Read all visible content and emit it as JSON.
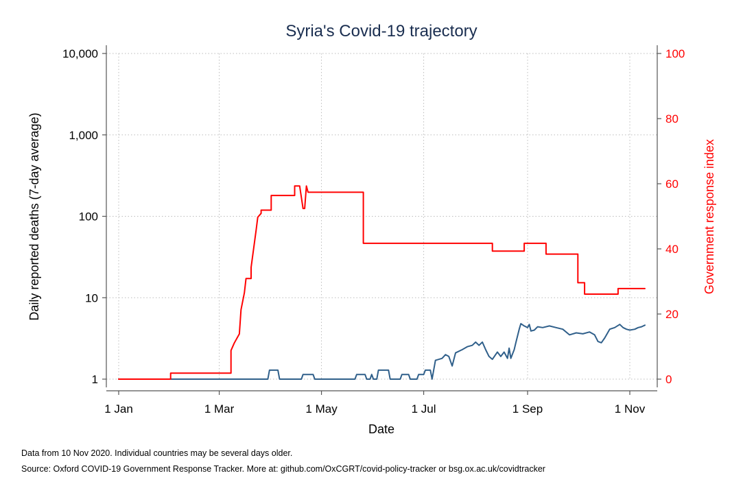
{
  "chart_data": {
    "type": "line",
    "title": "Syria's Covid-19 trajectory",
    "xlabel": "Date",
    "ylabel_left": "Daily reported deaths (7-day average)",
    "ylabel_right": "Government response index",
    "left_axis": {
      "scale": "log",
      "range": [
        1,
        10000
      ],
      "ticks": [
        1,
        10,
        100,
        1000,
        10000
      ],
      "tick_labels": [
        "1",
        "10",
        "100",
        "1,000",
        "10,000"
      ]
    },
    "right_axis": {
      "scale": "linear",
      "range": [
        0,
        100
      ],
      "ticks": [
        0,
        20,
        40,
        60,
        80,
        100
      ],
      "tick_labels": [
        "0",
        "20",
        "40",
        "60",
        "80",
        "100"
      ]
    },
    "x_axis": {
      "range": [
        "2020-01-01",
        "2020-11-10"
      ],
      "ticks": [
        "2020-01-01",
        "2020-03-01",
        "2020-05-01",
        "2020-07-01",
        "2020-09-01",
        "2020-11-01"
      ],
      "tick_labels": [
        "1 Jan",
        "1 Mar",
        "1 May",
        "1 Jul",
        "1 Sep",
        "1 Nov"
      ]
    },
    "grid": true,
    "colors": {
      "deaths": "#2f5f8a",
      "response": "#ff0000",
      "axis": "#555555",
      "grid": "#bbbbbb"
    },
    "series": [
      {
        "axis": "left",
        "color": "#2f5f8a",
        "points": [
          [
            "2020-01-01",
            1
          ],
          [
            "2020-03-30",
            1
          ],
          [
            "2020-03-31",
            1.29
          ],
          [
            "2020-04-05",
            1.29
          ],
          [
            "2020-04-06",
            1
          ],
          [
            "2020-04-19",
            1
          ],
          [
            "2020-04-20",
            1.14
          ],
          [
            "2020-04-26",
            1.14
          ],
          [
            "2020-04-27",
            1
          ],
          [
            "2020-05-21",
            1
          ],
          [
            "2020-05-22",
            1.14
          ],
          [
            "2020-05-27",
            1.14
          ],
          [
            "2020-05-28",
            1
          ],
          [
            "2020-05-30",
            1
          ],
          [
            "2020-05-31",
            1.14
          ],
          [
            "2020-06-01",
            1
          ],
          [
            "2020-06-03",
            1
          ],
          [
            "2020-06-04",
            1.29
          ],
          [
            "2020-06-10",
            1.29
          ],
          [
            "2020-06-11",
            1
          ],
          [
            "2020-06-17",
            1
          ],
          [
            "2020-06-18",
            1.14
          ],
          [
            "2020-06-22",
            1.14
          ],
          [
            "2020-06-23",
            1
          ],
          [
            "2020-06-27",
            1
          ],
          [
            "2020-06-28",
            1.14
          ],
          [
            "2020-07-01",
            1.14
          ],
          [
            "2020-07-02",
            1.29
          ],
          [
            "2020-07-05",
            1.29
          ],
          [
            "2020-07-06",
            1
          ],
          [
            "2020-07-08",
            1.7
          ],
          [
            "2020-07-12",
            1.8
          ],
          [
            "2020-07-14",
            2.0
          ],
          [
            "2020-07-16",
            1.9
          ],
          [
            "2020-07-18",
            1.45
          ],
          [
            "2020-07-20",
            2.1
          ],
          [
            "2020-07-24",
            2.3
          ],
          [
            "2020-07-27",
            2.5
          ],
          [
            "2020-07-30",
            2.6
          ],
          [
            "2020-08-01",
            2.85
          ],
          [
            "2020-08-03",
            2.6
          ],
          [
            "2020-08-05",
            2.85
          ],
          [
            "2020-08-07",
            2.3
          ],
          [
            "2020-08-09",
            1.9
          ],
          [
            "2020-08-11",
            1.75
          ],
          [
            "2020-08-14",
            2.15
          ],
          [
            "2020-08-16",
            1.9
          ],
          [
            "2020-08-18",
            2.15
          ],
          [
            "2020-08-20",
            1.8
          ],
          [
            "2020-08-21",
            2.4
          ],
          [
            "2020-08-22",
            1.8
          ],
          [
            "2020-08-24",
            2.3
          ],
          [
            "2020-08-25",
            2.8
          ],
          [
            "2020-08-27",
            4.1
          ],
          [
            "2020-08-28",
            4.8
          ],
          [
            "2020-08-30",
            4.5
          ],
          [
            "2020-09-01",
            4.3
          ],
          [
            "2020-09-02",
            4.7
          ],
          [
            "2020-09-03",
            3.9
          ],
          [
            "2020-09-05",
            4.0
          ],
          [
            "2020-09-07",
            4.4
          ],
          [
            "2020-09-10",
            4.3
          ],
          [
            "2020-09-14",
            4.5
          ],
          [
            "2020-09-18",
            4.3
          ],
          [
            "2020-09-22",
            4.1
          ],
          [
            "2020-09-26",
            3.5
          ],
          [
            "2020-09-30",
            3.7
          ],
          [
            "2020-10-04",
            3.6
          ],
          [
            "2020-10-08",
            3.8
          ],
          [
            "2020-10-11",
            3.5
          ],
          [
            "2020-10-13",
            2.9
          ],
          [
            "2020-10-15",
            2.8
          ],
          [
            "2020-10-17",
            3.2
          ],
          [
            "2020-10-20",
            4.1
          ],
          [
            "2020-10-23",
            4.3
          ],
          [
            "2020-10-26",
            4.7
          ],
          [
            "2020-10-28",
            4.3
          ],
          [
            "2020-10-30",
            4.1
          ],
          [
            "2020-11-01",
            4.0
          ],
          [
            "2020-11-04",
            4.1
          ],
          [
            "2020-11-06",
            4.3
          ],
          [
            "2020-11-08",
            4.4
          ],
          [
            "2020-11-10",
            4.6
          ]
        ]
      },
      {
        "axis": "right",
        "color": "#ff0000",
        "points": [
          [
            "2020-01-01",
            0
          ],
          [
            "2020-02-01",
            0
          ],
          [
            "2020-02-01",
            1.85
          ],
          [
            "2020-03-08",
            1.85
          ],
          [
            "2020-03-08",
            8.8
          ],
          [
            "2020-03-10",
            11.1
          ],
          [
            "2020-03-13",
            13.9
          ],
          [
            "2020-03-14",
            21.3
          ],
          [
            "2020-03-16",
            26.5
          ],
          [
            "2020-03-17",
            30.9
          ],
          [
            "2020-03-20",
            30.9
          ],
          [
            "2020-03-20",
            34.3
          ],
          [
            "2020-03-23",
            45.7
          ],
          [
            "2020-03-24",
            49.7
          ],
          [
            "2020-03-26",
            50.9
          ],
          [
            "2020-03-26",
            51.9
          ],
          [
            "2020-04-01",
            51.9
          ],
          [
            "2020-04-01",
            56.4
          ],
          [
            "2020-04-15",
            56.4
          ],
          [
            "2020-04-15",
            59.3
          ],
          [
            "2020-04-18",
            59.3
          ],
          [
            "2020-04-20",
            52.4
          ],
          [
            "2020-04-21",
            52.4
          ],
          [
            "2020-04-22",
            59.3
          ],
          [
            "2020-04-23",
            57.4
          ],
          [
            "2020-05-26",
            57.4
          ],
          [
            "2020-05-26",
            41.7
          ],
          [
            "2020-08-11",
            41.7
          ],
          [
            "2020-08-11",
            39.3
          ],
          [
            "2020-08-30",
            39.3
          ],
          [
            "2020-08-30",
            41.7
          ],
          [
            "2020-09-12",
            41.7
          ],
          [
            "2020-09-12",
            38.4
          ],
          [
            "2020-10-01",
            38.4
          ],
          [
            "2020-10-01",
            29.6
          ],
          [
            "2020-10-05",
            29.6
          ],
          [
            "2020-10-05",
            26.1
          ],
          [
            "2020-10-25",
            26.1
          ],
          [
            "2020-10-25",
            27.8
          ],
          [
            "2020-11-10",
            27.8
          ]
        ]
      }
    ]
  },
  "notes": {
    "line1": "Data from 10 Nov 2020. Individual countries may be several days older.",
    "line2": "Source: Oxford COVID-19 Government Response Tracker. More at: github.com/OxCGRT/covid-policy-tracker or bsg.ox.ac.uk/covidtracker"
  }
}
